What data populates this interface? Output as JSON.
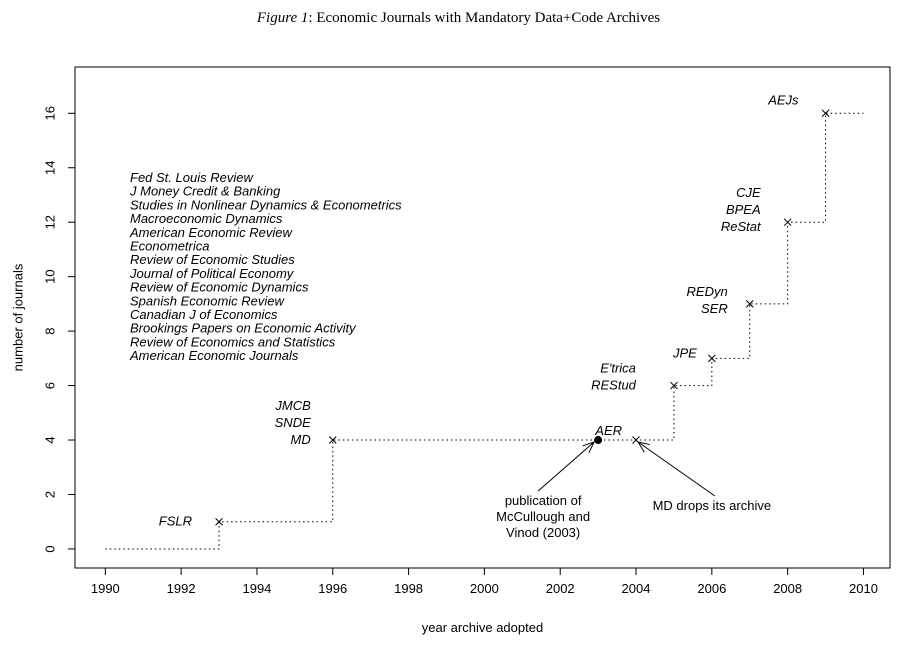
{
  "title": {
    "label": "Figure 1",
    "text": ": Economic Journals with Mandatory Data+Code Archives"
  },
  "chart_data": {
    "type": "line",
    "xlabel": "year archive adopted",
    "ylabel": "number of journals",
    "xlim": [
      1989.2,
      2010.7
    ],
    "ylim": [
      -0.7,
      17.7
    ],
    "xticks": [
      1990,
      1992,
      1994,
      1996,
      1998,
      2000,
      2002,
      2004,
      2006,
      2008,
      2010
    ],
    "yticks": [
      0,
      2,
      4,
      6,
      8,
      10,
      12,
      14,
      16
    ],
    "grid": false,
    "step_series": [
      [
        1990,
        0
      ],
      [
        1993,
        0
      ],
      [
        1993,
        1
      ],
      [
        1996,
        1
      ],
      [
        1996,
        4
      ],
      [
        2005,
        4
      ],
      [
        2005,
        6
      ],
      [
        2006,
        6
      ],
      [
        2006,
        7
      ],
      [
        2007,
        7
      ],
      [
        2007,
        9
      ],
      [
        2008,
        9
      ],
      [
        2008,
        12
      ],
      [
        2009,
        12
      ],
      [
        2009,
        16
      ],
      [
        2010,
        16
      ]
    ],
    "adoptions": [
      {
        "x": 1993,
        "y": 1,
        "labels": [
          "FSLR"
        ]
      },
      {
        "x": 1996,
        "y": 4,
        "labels": [
          "JMCB",
          "SNDE",
          "MD"
        ]
      },
      {
        "x": 2004,
        "y": 4,
        "labels": [
          "AER"
        ]
      },
      {
        "x": 2005,
        "y": 6,
        "labels": [
          "E'trica",
          "REStud"
        ]
      },
      {
        "x": 2006,
        "y": 7,
        "labels": [
          "JPE"
        ]
      },
      {
        "x": 2007,
        "y": 9,
        "labels": [
          "REDyn",
          "SER"
        ]
      },
      {
        "x": 2008,
        "y": 12,
        "labels": [
          "CJE",
          "BPEA",
          "ReStat"
        ]
      },
      {
        "x": 2009,
        "y": 16,
        "labels": [
          "AEJs"
        ]
      }
    ],
    "events": [
      {
        "x": 2003,
        "y": 4,
        "marker": "filled-circle",
        "annotation": [
          "publication of",
          "McCullough and",
          "Vinod (2003)"
        ]
      },
      {
        "x": 2004,
        "y": 4,
        "marker": "arrow",
        "annotation": [
          "MD drops its archive"
        ]
      }
    ],
    "legend_list": [
      "Fed St. Louis Review",
      "J Money Credit & Banking",
      "Studies in Nonlinear Dynamics & Econometrics",
      "Macroeconomic Dynamics",
      "American Economic Review",
      "Econometrica",
      "Review of Economic Studies",
      "Journal of Political Economy",
      "Review of Economic Dynamics",
      "Spanish Economic Review",
      "Canadian J of Economics",
      "Brookings Papers on Economic Activity",
      "Review of Economics and Statistics",
      "American Economic Journals"
    ]
  }
}
